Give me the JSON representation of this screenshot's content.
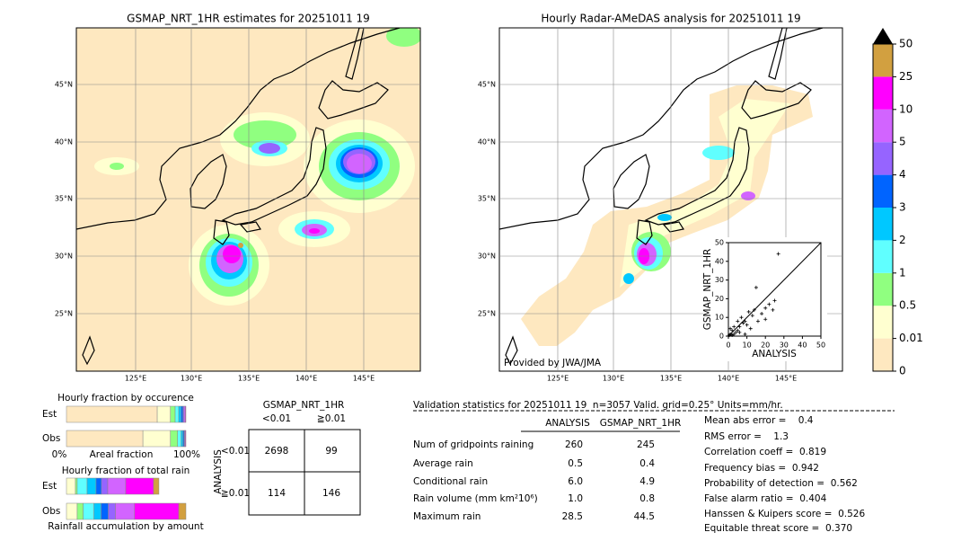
{
  "maps": [
    {
      "title": "GSMAP_NRT_1HR estimates for 20251011 19",
      "lat_labels": [
        "45°N",
        "40°N",
        "35°N",
        "30°N",
        "25°N"
      ],
      "lon_labels": [
        "125°E",
        "130°E",
        "135°E",
        "140°E",
        "145°E"
      ]
    },
    {
      "title": "Hourly Radar-AMeDAS analysis for 20251011 19",
      "lat_labels": [
        "45°N",
        "40°N",
        "35°N",
        "30°N",
        "25°N"
      ],
      "lon_labels": [
        "125°E",
        "130°E",
        "135°E",
        "140°E",
        "145°E"
      ],
      "credit": "Provided by JWA/JMA"
    }
  ],
  "colorbar": {
    "levels": [
      0,
      0.01,
      0.5,
      1,
      2,
      3,
      4,
      5,
      10,
      25,
      50
    ],
    "colors": [
      "#fee8c0",
      "#ffffd0",
      "#90ff80",
      "#60ffff",
      "#00c8ff",
      "#0064ff",
      "#9664ff",
      "#d264ff",
      "#ff00ff",
      "#d2a040"
    ],
    "extend_color": "#000000"
  },
  "scatter": {
    "x_label": "ANALYSIS",
    "y_label": "GSMAP_NRT_1HR",
    "xlim": [
      0,
      50
    ],
    "ylim": [
      0,
      50
    ],
    "xticks": [
      0,
      10,
      20,
      30,
      40,
      50
    ],
    "yticks": [
      0,
      10,
      20,
      30,
      40,
      50
    ],
    "x": [
      27,
      15,
      25,
      22,
      20,
      18,
      13,
      11,
      9,
      8,
      6,
      5,
      4,
      3,
      2,
      1,
      0.5,
      7,
      10,
      12,
      5,
      3,
      2,
      1,
      16,
      14,
      20,
      24,
      6,
      9
    ],
    "y": [
      44,
      26,
      19,
      17,
      15,
      12,
      11,
      13,
      8,
      7,
      5,
      3,
      2,
      1,
      0.5,
      1,
      0.5,
      10,
      6,
      4,
      8,
      5,
      3,
      4,
      8,
      14,
      9,
      14,
      2,
      1
    ]
  },
  "occurrence": {
    "title": "Hourly fraction by occurence",
    "axis_labels": [
      "0%",
      "Areal fraction",
      "100%"
    ],
    "rows": [
      {
        "label": "Est",
        "fractions": [
          0.76,
          0.11,
          0.04,
          0.03,
          0.02,
          0.015,
          0.01,
          0.01,
          0.005,
          0
        ]
      },
      {
        "label": "Obs",
        "fractions": [
          0.64,
          0.23,
          0.06,
          0.03,
          0.015,
          0.01,
          0.005,
          0.005,
          0.005,
          0
        ]
      }
    ]
  },
  "total_rain": {
    "title": "Hourly fraction of total rain",
    "footer": "Rainfall accumulation by amount",
    "rows": [
      {
        "label": "Est",
        "fractions": [
          0,
          0.075,
          0.015,
          0.083,
          0.075,
          0.045,
          0.053,
          0.15,
          0.233,
          0.045
        ]
      },
      {
        "label": "Obs",
        "fractions": [
          0,
          0.09,
          0.05,
          0.09,
          0.06,
          0.06,
          0.06,
          0.16,
          0.37,
          0.06
        ]
      }
    ]
  },
  "contingency": {
    "title": "GSMAP_NRT_1HR",
    "col_labels": [
      "<0.01",
      "≧0.01"
    ],
    "row_title": "ANALYSIS",
    "row_labels": [
      "<0.01",
      "≧0.01"
    ],
    "cells": [
      [
        2698,
        99
      ],
      [
        114,
        146
      ]
    ]
  },
  "validation": {
    "header": "Validation statistics for 20251011 19  n=3057 Valid. grid=0.25° Units=mm/hr.",
    "columns": [
      "ANALYSIS",
      "GSMAP_NRT_1HR"
    ],
    "rows": [
      {
        "name": "Num of gridpoints raining",
        "values": [
          "260",
          "245"
        ]
      },
      {
        "name": "Average rain",
        "values": [
          "0.5",
          "0.4"
        ]
      },
      {
        "name": "Conditional rain",
        "values": [
          "6.0",
          "4.9"
        ]
      },
      {
        "name": "Rain volume (mm km²10⁶)",
        "values": [
          "1.0",
          "0.8"
        ]
      },
      {
        "name": "Maximum rain",
        "values": [
          "28.5",
          "44.5"
        ]
      }
    ],
    "scores": [
      "Mean abs error =    0.4",
      "RMS error =    1.3",
      "Correlation coeff =  0.819",
      "Frequency bias =  0.942",
      "Probability of detection =  0.562",
      "False alarm ratio =  0.404",
      "Hanssen & Kuipers score =  0.526",
      "Equitable threat score =  0.370"
    ]
  }
}
